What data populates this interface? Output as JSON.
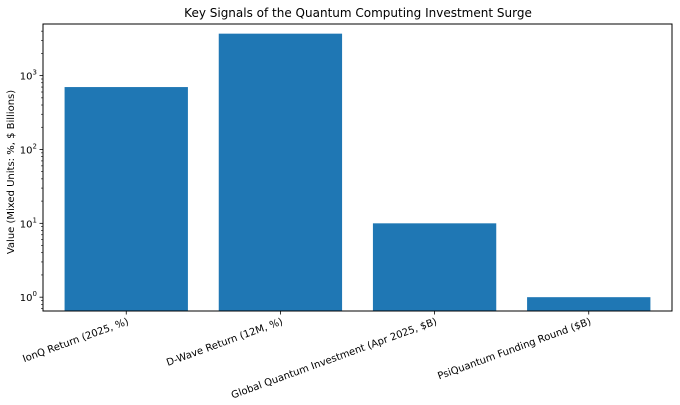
{
  "chart_data": {
    "type": "bar",
    "title": "Key Signals of the Quantum Computing Investment Surge",
    "xlabel": "",
    "ylabel": "Value (Mixed Units: %, $ Billions)",
    "yscale": "log",
    "ylim": [
      0.65,
      5000
    ],
    "y_ticks": [
      {
        "value": 1,
        "base": "10",
        "exp": "0"
      },
      {
        "value": 10,
        "base": "10",
        "exp": "1"
      },
      {
        "value": 100,
        "base": "10",
        "exp": "2"
      },
      {
        "value": 1000,
        "base": "10",
        "exp": "3"
      }
    ],
    "categories": [
      "IonQ Return (2025, %)",
      "D-Wave Return (12M, %)",
      "Global Quantum Investment (Apr 2025, $B)",
      "PsiQuantum Funding Round ($B)"
    ],
    "values": [
      700,
      3700,
      10,
      1
    ],
    "bar_color": "#1f77b4",
    "grid": false,
    "legend": "none"
  }
}
